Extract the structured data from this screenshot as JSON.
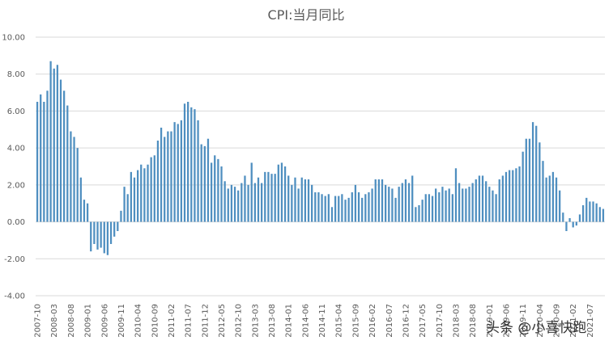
{
  "watermark": "头条 @小喜快跑",
  "colors": {
    "bar": "#4f8fc0",
    "grid": "#d9d9d9",
    "text": "#595959"
  },
  "chart_data": {
    "type": "bar",
    "title": "CPI:当月同比",
    "xlabel": "",
    "ylabel": "",
    "ylim": [
      -4,
      10
    ],
    "yticks": [
      "-4.00",
      "-2.00",
      "0.00",
      "2.00",
      "4.00",
      "6.00",
      "8.00",
      "10.00"
    ],
    "grid": true,
    "legend": "none",
    "tick_labels": [
      "2007-10",
      "2008-03",
      "2008-08",
      "2009-01",
      "2009-06",
      "2009-11",
      "2010-04",
      "2010-09",
      "2011-02",
      "2011-07",
      "2011-12",
      "2012-05",
      "2012-10",
      "2013-03",
      "2013-08",
      "2014-01",
      "2014-06",
      "2014-11",
      "2015-04",
      "2015-09",
      "2016-02",
      "2016-07",
      "2016-12",
      "2017-05",
      "2017-10",
      "2018-03",
      "2018-08",
      "2019-01",
      "2019-06",
      "2019-11",
      "2020-04",
      "2020-09",
      "2021-02",
      "2021-07"
    ],
    "start": "2007-10",
    "values": [
      6.5,
      6.9,
      6.5,
      7.1,
      8.7,
      8.3,
      8.5,
      7.7,
      7.1,
      6.3,
      4.9,
      4.6,
      4.0,
      2.4,
      1.2,
      1.0,
      -1.6,
      -1.2,
      -1.5,
      -1.4,
      -1.7,
      -1.8,
      -1.2,
      -0.8,
      -0.5,
      0.6,
      1.9,
      1.5,
      2.7,
      2.4,
      2.8,
      3.1,
      2.9,
      3.1,
      3.5,
      3.6,
      4.4,
      5.1,
      4.6,
      4.9,
      4.9,
      5.4,
      5.3,
      5.5,
      6.4,
      6.5,
      6.2,
      6.1,
      5.5,
      4.2,
      4.1,
      4.5,
      3.2,
      3.6,
      3.4,
      3.0,
      2.2,
      1.8,
      2.0,
      1.9,
      1.7,
      2.1,
      2.5,
      2.0,
      3.2,
      2.1,
      2.4,
      2.1,
      2.7,
      2.7,
      2.6,
      2.6,
      3.1,
      3.2,
      3.0,
      2.5,
      2.0,
      2.4,
      1.8,
      2.4,
      2.3,
      2.3,
      2.0,
      1.6,
      1.6,
      1.5,
      1.4,
      1.5,
      0.8,
      1.4,
      1.4,
      1.5,
      1.2,
      1.3,
      1.6,
      2.0,
      1.6,
      1.3,
      1.5,
      1.6,
      1.8,
      2.3,
      2.3,
      2.3,
      2.0,
      1.9,
      1.8,
      1.3,
      1.9,
      2.1,
      2.3,
      2.1,
      2.5,
      0.8,
      0.9,
      1.2,
      1.5,
      1.5,
      1.4,
      1.8,
      1.6,
      1.9,
      1.7,
      1.8,
      1.5,
      2.9,
      2.1,
      1.8,
      1.8,
      1.9,
      2.1,
      2.3,
      2.5,
      2.5,
      2.2,
      1.9,
      1.7,
      1.5,
      2.3,
      2.5,
      2.7,
      2.8,
      2.8,
      2.9,
      3.0,
      3.8,
      4.5,
      4.5,
      5.4,
      5.2,
      4.3,
      3.3,
      2.4,
      2.5,
      2.7,
      2.4,
      1.7,
      0.5,
      -0.5,
      0.2,
      -0.3,
      -0.2,
      0.4,
      0.9,
      1.3,
      1.1,
      1.1,
      1.0,
      0.8,
      0.7
    ]
  }
}
